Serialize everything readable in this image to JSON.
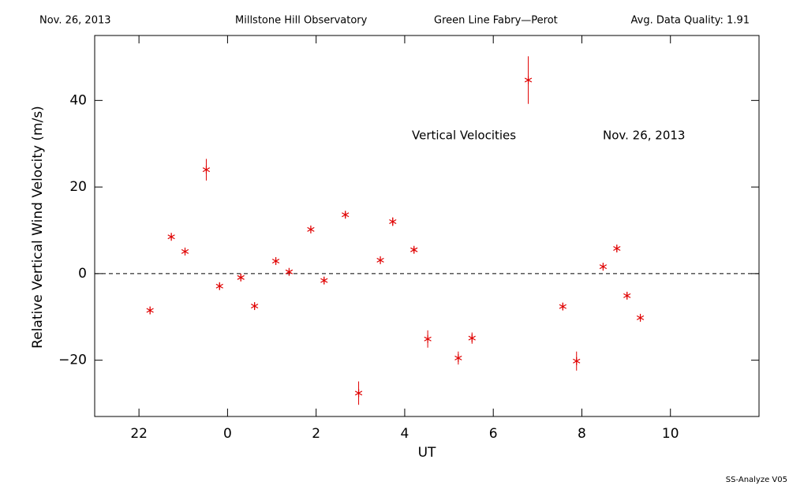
{
  "chart_data": {
    "type": "scatter",
    "header": [
      "Nov. 26, 2013",
      "Millstone Hill Observatory",
      "Green Line Fabry—Perot",
      "Avg. Data Quality: 1.91"
    ],
    "annotations": [
      "Vertical Velocities",
      "Nov. 26, 2013"
    ],
    "footer": "SS-Analyze V05",
    "x_label": "UT",
    "y_label": "Relative Vertical Wind Velocity (m/s)",
    "xlim": [
      -3,
      12
    ],
    "xticks": [
      {
        "value": -2,
        "label": "22"
      },
      0,
      2,
      4,
      6,
      8,
      10
    ],
    "ylim": [
      -33,
      55
    ],
    "yticks": [
      {
        "value": -20,
        "label": "−20"
      },
      0,
      20,
      40
    ],
    "reference_line": 0,
    "series": [
      {
        "name": "Vertical Velocities",
        "color": "#e00000",
        "x": [
          -1.75,
          -1.27,
          -0.96,
          -0.48,
          -0.18,
          0.3,
          0.61,
          1.09,
          1.39,
          1.88,
          2.18,
          2.66,
          2.96,
          3.45,
          3.73,
          4.21,
          4.52,
          5.21,
          5.52,
          6.79,
          7.57,
          7.88,
          8.48,
          8.79,
          9.02,
          9.32
        ],
        "values": [
          -8.5,
          8.5,
          5.1,
          24,
          -2.9,
          -0.9,
          -7.5,
          2.9,
          0.4,
          10.2,
          -1.6,
          13.6,
          -27.6,
          3.1,
          12.0,
          5.5,
          -15.1,
          -19.5,
          -14.9,
          44.7,
          -7.6,
          -20.2,
          1.6,
          5.8,
          -5.1,
          -10.2
        ],
        "errors": [
          0.8,
          0.8,
          0.8,
          2.5,
          0.8,
          0.8,
          0.8,
          0.8,
          0.8,
          0.8,
          0.8,
          0.8,
          2.7,
          0.8,
          1.0,
          0.8,
          2.0,
          1.5,
          1.3,
          5.5,
          0.8,
          2.2,
          0.8,
          0.8,
          0.8,
          0.8
        ]
      }
    ]
  }
}
